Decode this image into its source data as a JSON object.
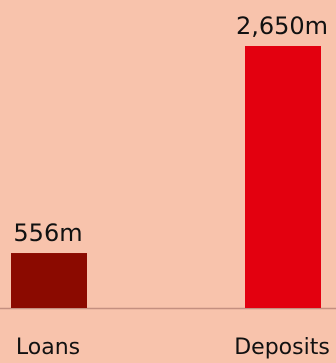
{
  "chart_data": {
    "type": "bar",
    "categories": [
      "Loans",
      "Deposits"
    ],
    "values": [
      556,
      2650
    ],
    "value_labels": [
      "556m",
      "2,650m"
    ],
    "bar_colors": [
      "#8b0a00",
      "#e3000f"
    ],
    "background_color": "#f8c3ac",
    "axis_color": "#c48f80",
    "ylim": [
      0,
      2650
    ],
    "grid": false,
    "legend": "none",
    "title": "",
    "xlabel": "",
    "ylabel": ""
  }
}
